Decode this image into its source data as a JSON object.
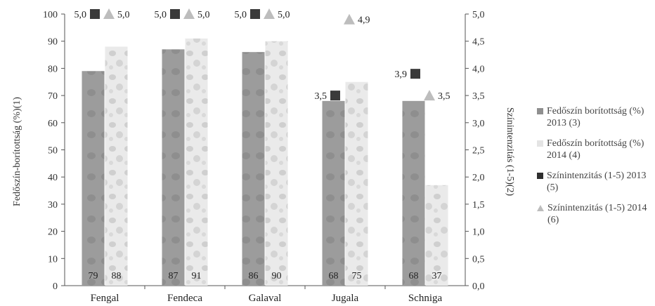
{
  "chart_data": {
    "type": "bar",
    "categories": [
      "Fengal",
      "Fendeca",
      "Galaval",
      "Jugala",
      "Schniga"
    ],
    "ylabel": "Fedőszín-borítottság (%)(1)",
    "y2label": "Színintenzitás (1-5)(2)",
    "ylim": [
      0,
      100
    ],
    "y2lim": [
      0,
      5
    ],
    "yticks": [
      "0",
      "10",
      "20",
      "30",
      "40",
      "50",
      "60",
      "70",
      "80",
      "90",
      "100"
    ],
    "y2ticks": [
      "0,0",
      "0,5",
      "1,0",
      "1,5",
      "2,0",
      "2,5",
      "3,0",
      "3,5",
      "4,0",
      "4,5",
      "5,0"
    ],
    "grid": false,
    "legend_position": "right",
    "series": [
      {
        "name": "Fedőszín borítottság (%) 2013 (3)",
        "kind": "bar",
        "axis": "left",
        "values": [
          79,
          87,
          86,
          68,
          68
        ],
        "labels": [
          "79",
          "87",
          "86",
          "68",
          "68"
        ],
        "color": "#9a9a9a"
      },
      {
        "name": "Fedőszín borítottság (%) 2014 (4)",
        "kind": "bar",
        "axis": "left",
        "values": [
          88,
          91,
          90,
          75,
          37
        ],
        "labels": [
          "88",
          "91",
          "90",
          "75",
          "37"
        ],
        "color": "#e2e2e2"
      },
      {
        "name": "Színintenzitás (1-5) 2013 (5)",
        "kind": "marker-square",
        "axis": "right",
        "values": [
          5.0,
          5.0,
          5.0,
          3.5,
          3.9
        ],
        "labels": [
          "5,0",
          "5,0",
          "5,0",
          "3,5",
          "3,9"
        ],
        "color": "#3a3a3a"
      },
      {
        "name": "Színintenzitás (1-5) 2014 (6)",
        "kind": "marker-triangle",
        "axis": "right",
        "values": [
          5.0,
          5.0,
          5.0,
          4.9,
          3.5
        ],
        "labels": [
          "5,0",
          "5,0",
          "5,0",
          "4,9",
          "3,5"
        ],
        "color": "#bdbdbd"
      }
    ]
  }
}
